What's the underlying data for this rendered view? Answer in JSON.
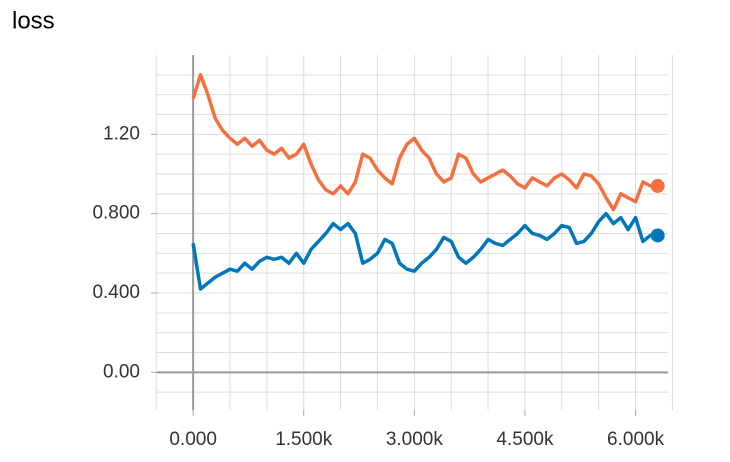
{
  "chart_data": {
    "type": "line",
    "title": "loss",
    "x": [
      0,
      100,
      200,
      300,
      400,
      500,
      600,
      700,
      800,
      900,
      1000,
      1100,
      1200,
      1300,
      1400,
      1500,
      1600,
      1700,
      1800,
      1900,
      2000,
      2100,
      2200,
      2300,
      2400,
      2500,
      2600,
      2700,
      2800,
      2900,
      3000,
      3100,
      3200,
      3300,
      3400,
      3500,
      3600,
      3700,
      3800,
      3900,
      4000,
      4100,
      4200,
      4300,
      4400,
      4500,
      4600,
      4700,
      4800,
      4900,
      5000,
      5100,
      5200,
      5300,
      5400,
      5500,
      5600,
      5700,
      5800,
      5900,
      6000,
      6100,
      6200,
      6300
    ],
    "series": [
      {
        "color": "#f4703f",
        "values": [
          1.38,
          1.5,
          1.4,
          1.28,
          1.22,
          1.18,
          1.15,
          1.18,
          1.14,
          1.17,
          1.12,
          1.1,
          1.13,
          1.08,
          1.1,
          1.15,
          1.05,
          0.97,
          0.92,
          0.9,
          0.94,
          0.9,
          0.96,
          1.1,
          1.08,
          1.02,
          0.98,
          0.95,
          1.08,
          1.15,
          1.18,
          1.12,
          1.08,
          1.0,
          0.96,
          0.98,
          1.1,
          1.08,
          1.0,
          0.96,
          0.98,
          1.0,
          1.02,
          0.99,
          0.95,
          0.93,
          0.98,
          0.96,
          0.94,
          0.98,
          1.0,
          0.97,
          0.93,
          1.0,
          0.99,
          0.95,
          0.88,
          0.82,
          0.9,
          0.88,
          0.86,
          0.96,
          0.94,
          0.94
        ]
      },
      {
        "color": "#0077bb",
        "values": [
          0.65,
          0.42,
          0.45,
          0.48,
          0.5,
          0.52,
          0.51,
          0.55,
          0.52,
          0.56,
          0.58,
          0.57,
          0.58,
          0.55,
          0.6,
          0.55,
          0.62,
          0.66,
          0.7,
          0.75,
          0.72,
          0.75,
          0.7,
          0.55,
          0.57,
          0.6,
          0.67,
          0.65,
          0.55,
          0.52,
          0.51,
          0.55,
          0.58,
          0.62,
          0.68,
          0.66,
          0.58,
          0.55,
          0.58,
          0.62,
          0.67,
          0.65,
          0.64,
          0.67,
          0.7,
          0.74,
          0.7,
          0.69,
          0.67,
          0.7,
          0.74,
          0.73,
          0.65,
          0.66,
          0.7,
          0.76,
          0.8,
          0.75,
          0.78,
          0.72,
          0.78,
          0.66,
          0.69,
          0.69
        ]
      }
    ],
    "xlim": [
      -490,
      6440
    ],
    "ylim": [
      -0.19,
      1.6
    ],
    "xticks": [
      {
        "value": 0,
        "label": "0.000"
      },
      {
        "value": 1500,
        "label": "1.500k"
      },
      {
        "value": 3000,
        "label": "3.000k"
      },
      {
        "value": 4500,
        "label": "4.500k"
      },
      {
        "value": 6000,
        "label": "6.000k"
      }
    ],
    "yticks": [
      {
        "value": 0,
        "label": "0.00"
      },
      {
        "value": 0.4,
        "label": "0.400"
      },
      {
        "value": 0.8,
        "label": "0.800"
      },
      {
        "value": 1.2,
        "label": "1.20"
      }
    ],
    "xgrid": [
      -500,
      0,
      500,
      1000,
      1500,
      2000,
      2500,
      3000,
      3500,
      4000,
      4500,
      5000,
      5500,
      6000,
      6500
    ],
    "ygrid": [
      -0.1,
      0,
      0.1,
      0.2,
      0.3,
      0.4,
      0.5,
      0.6,
      0.7,
      0.8,
      0.9,
      1.0,
      1.1,
      1.2,
      1.3,
      1.4,
      1.5
    ]
  }
}
